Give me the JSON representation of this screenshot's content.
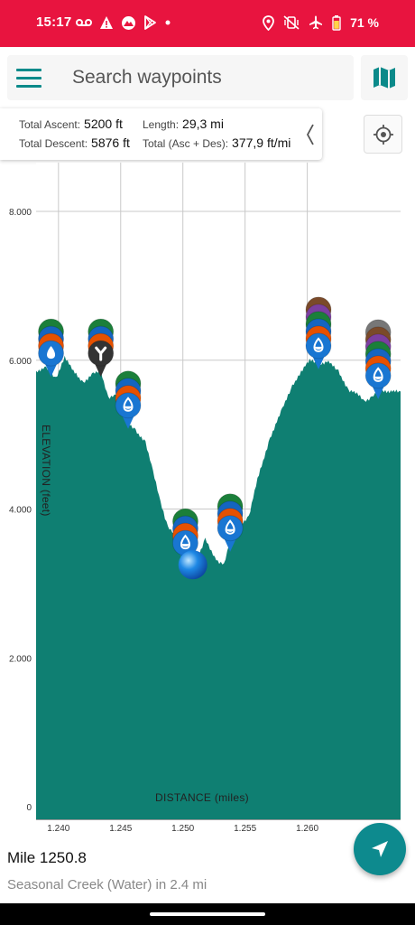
{
  "status_bar": {
    "time": "15:17",
    "battery_pct": "71 %",
    "left_icons": [
      "voicemail-icon",
      "warning-icon",
      "app-icon",
      "play-store-icon",
      "dot-icon"
    ],
    "right_icons": [
      "location-icon",
      "vibrate-off-icon",
      "airplane-icon",
      "battery-icon"
    ],
    "color": "#e8143f"
  },
  "search": {
    "placeholder": "Search waypoints",
    "value": ""
  },
  "stats": {
    "total_ascent_label": "Total Ascent:",
    "total_ascent_value": "5200 ft",
    "length_label": "Length:",
    "length_value": "29,3 mi",
    "total_descent_label": "Total Descent:",
    "total_descent_value": "5876 ft",
    "total_label": "Total (Asc + Des):",
    "total_value": "377,9 ft/mi"
  },
  "chart_data": {
    "type": "area",
    "xlabel": "DISTANCE (miles)",
    "ylabel": "ELEVATION (feet)",
    "xlim": [
      1238.2,
      1267.5
    ],
    "ylim": [
      0,
      8000
    ],
    "x_ticks": [
      1240,
      1245,
      1250,
      1255,
      1260
    ],
    "x_tick_labels": [
      "1.240",
      "1.245",
      "1.250",
      "1.255",
      "1.260"
    ],
    "y_ticks": [
      0,
      2000,
      4000,
      6000,
      8000
    ],
    "y_tick_labels": [
      "0",
      "2.000",
      "4.000",
      "6.000",
      "8.000"
    ],
    "grid": true,
    "fill_color": "#0f7f72",
    "x": [
      1238.2,
      1239.0,
      1239.8,
      1240.5,
      1241.2,
      1242.0,
      1242.8,
      1243.4,
      1244.0,
      1244.6,
      1245.2,
      1245.6,
      1246.2,
      1247.0,
      1247.6,
      1248.2,
      1248.8,
      1249.4,
      1250.1,
      1250.6,
      1251.2,
      1251.8,
      1252.3,
      1252.8,
      1253.3,
      1253.7,
      1254.2,
      1254.7,
      1255.3,
      1256.0,
      1257.0,
      1258.0,
      1258.8,
      1259.5,
      1260.2,
      1261.0,
      1261.7,
      1262.5,
      1263.3,
      1264.0,
      1264.6,
      1265.2,
      1265.8,
      1266.5,
      1267.5
    ],
    "y": [
      5850,
      5900,
      5750,
      6050,
      5850,
      5700,
      5820,
      5850,
      5500,
      5520,
      5350,
      5150,
      5050,
      4900,
      4500,
      4100,
      3750,
      3650,
      3300,
      3200,
      3350,
      3600,
      3420,
      3300,
      3250,
      3500,
      3650,
      3800,
      3900,
      4400,
      4950,
      5350,
      5650,
      5850,
      6000,
      5950,
      5980,
      5850,
      5600,
      5550,
      5450,
      5500,
      5600,
      5580,
      5580
    ]
  },
  "waypoint_markers": [
    {
      "mile": 1239.4,
      "elevation": 5850,
      "icon": "water-drop-icon",
      "stack": [
        "#1b7f3a",
        "#1565c0",
        "#e65100",
        "#1976d2"
      ]
    },
    {
      "mile": 1243.4,
      "elevation": 5850,
      "icon": "trail-junction-icon",
      "stack": [
        "#1b7f3a",
        "#1565c0",
        "#e65100",
        "#333333"
      ]
    },
    {
      "mile": 1245.6,
      "elevation": 5150,
      "icon": "water-tap-icon",
      "stack": [
        "#1b7f3a",
        "#1565c0",
        "#e65100",
        "#1976d2"
      ]
    },
    {
      "mile": 1250.2,
      "elevation": 3300,
      "icon": "water-tap-icon",
      "stack": [
        "#1b7f3a",
        "#1565c0",
        "#e65100",
        "#1976d2"
      ]
    },
    {
      "mile": 1253.8,
      "elevation": 3500,
      "icon": "water-tap-icon",
      "stack": [
        "#1b7f3a",
        "#1565c0",
        "#e65100",
        "#1976d2"
      ]
    },
    {
      "mile": 1260.9,
      "elevation": 5950,
      "icon": "water-tap-icon",
      "stack": [
        "#7a4a2a",
        "#7b3fa0",
        "#1b7f3a",
        "#1565c0",
        "#e65100",
        "#1976d2"
      ]
    },
    {
      "mile": 1265.7,
      "elevation": 5550,
      "icon": "water-tap-icon",
      "stack": [
        "#777777",
        "#7a4a2a",
        "#7b3fa0",
        "#1b7f3a",
        "#1565c0",
        "#e65100",
        "#1976d2"
      ]
    }
  ],
  "position_marker": {
    "mile": 1250.8,
    "elevation": 3250,
    "color": "#1e88e5"
  },
  "info": {
    "mile": "Mile 1250.8",
    "next": "Seasonal Creek (Water) in 2.4 mi"
  },
  "accent_color": "#0d8a8e"
}
